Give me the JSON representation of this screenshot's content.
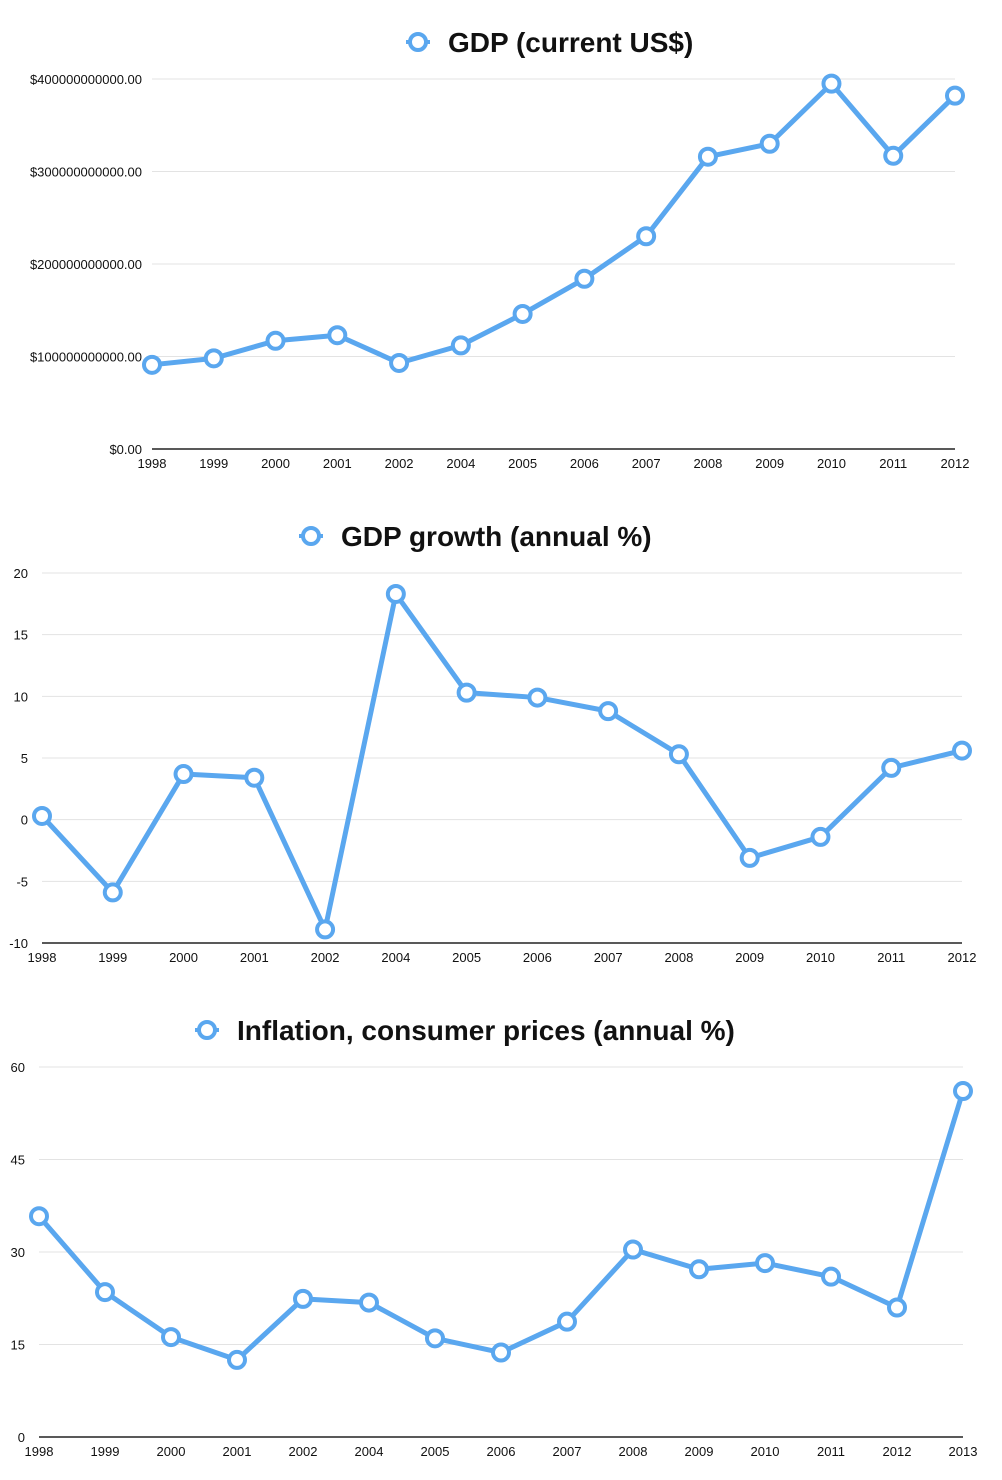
{
  "chart_data": [
    {
      "type": "line",
      "title": "GDP (current US$)",
      "color": "#5aa7ef",
      "categories": [
        "1998",
        "1999",
        "2000",
        "2001",
        "2002",
        "2004",
        "2005",
        "2006",
        "2007",
        "2008",
        "2009",
        "2010",
        "2011",
        "2012"
      ],
      "series": [
        {
          "name": "GDP (current US$)",
          "values": [
            91000000000,
            98000000000,
            117000000000,
            123000000000,
            93000000000,
            112000000000,
            146000000000,
            184000000000,
            230000000000,
            316000000000,
            330000000000,
            395000000000,
            317000000000,
            382000000000
          ]
        }
      ],
      "ylim": [
        0,
        400000000000
      ],
      "yticks": [
        0,
        100000000000,
        200000000000,
        300000000000,
        400000000000
      ],
      "ytick_labels": [
        "$0.00",
        "$100000000000.00",
        "$200000000000.00",
        "$300000000000.00",
        "$400000000000.00"
      ],
      "grid": true,
      "legend": "top-center"
    },
    {
      "type": "line",
      "title": "GDP growth (annual %)",
      "color": "#5aa7ef",
      "categories": [
        "1998",
        "1999",
        "2000",
        "2001",
        "2002",
        "2004",
        "2005",
        "2006",
        "2007",
        "2008",
        "2009",
        "2010",
        "2011",
        "2012"
      ],
      "series": [
        {
          "name": "GDP growth (annual %)",
          "values": [
            0.3,
            -5.9,
            3.7,
            3.4,
            -8.9,
            18.3,
            10.3,
            9.9,
            8.8,
            5.3,
            -3.1,
            -1.4,
            4.2,
            5.6
          ]
        }
      ],
      "ylim": [
        -10,
        20
      ],
      "yticks": [
        -10,
        -5,
        0,
        5,
        10,
        15,
        20
      ],
      "ytick_labels": [
        "-10",
        "-5",
        "0",
        "5",
        "10",
        "15",
        "20"
      ],
      "grid": true,
      "legend": "top-center"
    },
    {
      "type": "line",
      "title": "Inflation, consumer prices (annual %)",
      "color": "#5aa7ef",
      "categories": [
        "1998",
        "1999",
        "2000",
        "2001",
        "2002",
        "2004",
        "2005",
        "2006",
        "2007",
        "2008",
        "2009",
        "2010",
        "2011",
        "2012",
        "2013"
      ],
      "series": [
        {
          "name": "Inflation, consumer prices (annual %)",
          "values": [
            35.8,
            23.5,
            16.2,
            12.5,
            22.4,
            21.8,
            16.0,
            13.7,
            18.7,
            30.4,
            27.2,
            28.2,
            26.0,
            21.0,
            56.1
          ]
        }
      ],
      "ylim": [
        0,
        60
      ],
      "yticks": [
        0,
        15,
        30,
        45,
        60
      ],
      "ytick_labels": [
        "0",
        "15",
        "30",
        "45",
        "60"
      ],
      "grid": true,
      "legend": "top-center"
    }
  ]
}
